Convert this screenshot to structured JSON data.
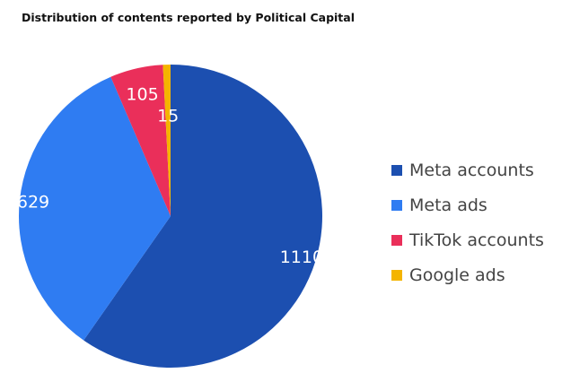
{
  "chart_data": {
    "type": "pie",
    "title": "Distribution of contents reported by Political Capital",
    "categories": [
      "Meta accounts",
      "Meta ads",
      "TikTok accounts",
      "Google ads"
    ],
    "values": [
      1110,
      629,
      105,
      15
    ],
    "colors": [
      "#1c4fb0",
      "#2f7cf2",
      "#ea2f5a",
      "#f4b400"
    ],
    "data_labels": [
      "1110",
      "629",
      "105",
      "15"
    ],
    "legend_position": "right",
    "start_angle_deg": 0,
    "direction": "clockwise"
  }
}
